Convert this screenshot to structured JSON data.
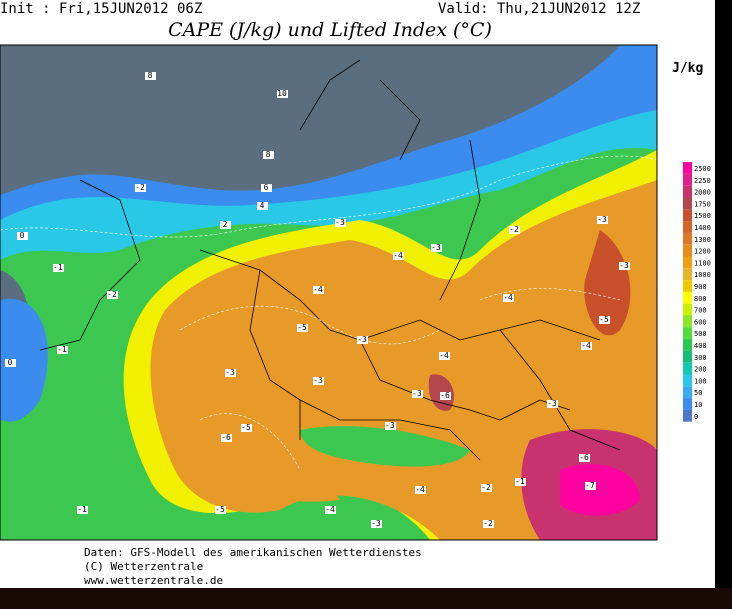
{
  "header": {
    "init": "Init : Fri,15JUN2012 06Z",
    "valid": "Valid: Thu,21JUN2012 12Z",
    "title": "CAPE (J/kg) und Lifted Index (°C)",
    "unit": "J/kg"
  },
  "colorbar": {
    "labels": [
      "2500",
      "2250",
      "2000",
      "1750",
      "1500",
      "1400",
      "1300",
      "1200",
      "1100",
      "1000",
      "900",
      "800",
      "700",
      "600",
      "500",
      "400",
      "300",
      "200",
      "100",
      "50",
      "10",
      "0"
    ]
  },
  "lifted_index_labels": [
    "8",
    "10",
    "8",
    "6",
    "4",
    "2",
    "0",
    "-1",
    "-2",
    "-3",
    "-3",
    "-4",
    "-5",
    "-4",
    "-3",
    "-2",
    "-3",
    "-4",
    "-5",
    "-6",
    "-3",
    "-4",
    "-3",
    "-3",
    "-5",
    "-6",
    "-3",
    "-4",
    "-7",
    "-5",
    "-4",
    "-3",
    "-2",
    "-1",
    "0",
    "-1",
    "-3",
    "-4",
    "-6",
    "-2",
    "-1",
    "-2",
    "-3"
  ],
  "footer": [
    "Daten: GFS-Modell des amerikanischen Wetterdienstes",
    "(C) Wetterzentrale",
    "www.wetterzentrale.de"
  ]
}
